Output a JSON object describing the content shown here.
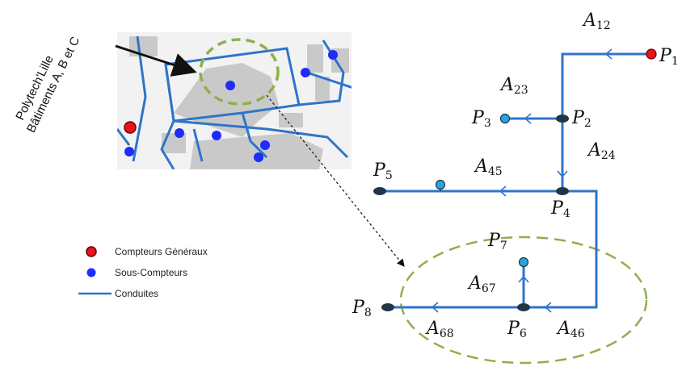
{
  "callout": {
    "line1": "Polytech'Lille",
    "line2": "Bâtiments A, B et C"
  },
  "legend": {
    "items": [
      {
        "label": "Compteurs Généraux",
        "color": "#e8141c"
      },
      {
        "label": "Sous-Compteurs",
        "color": "#1f2bff"
      },
      {
        "label": "Conduites",
        "color": "#2e6fd6"
      }
    ]
  },
  "colors": {
    "pipe": "#2e75c8",
    "general_meter": "#e8141c",
    "sub_meter_map": "#1f2bff",
    "terminal_node": "#29a4dc",
    "junction_node": "#243447",
    "zoom_circle": "#8db04a",
    "building": "#c9c9c9"
  },
  "network": {
    "nodes": [
      {
        "id": "P1",
        "base": "P",
        "sub": "1",
        "kind": "general"
      },
      {
        "id": "P2",
        "base": "P",
        "sub": "2",
        "kind": "junction"
      },
      {
        "id": "P3",
        "base": "P",
        "sub": "3",
        "kind": "terminal"
      },
      {
        "id": "P4",
        "base": "P",
        "sub": "4",
        "kind": "junction"
      },
      {
        "id": "P5",
        "base": "P",
        "sub": "5",
        "kind": "junction"
      },
      {
        "id": "P6",
        "base": "P",
        "sub": "6",
        "kind": "junction"
      },
      {
        "id": "P7",
        "base": "P",
        "sub": "7",
        "kind": "terminal"
      },
      {
        "id": "P8",
        "base": "P",
        "sub": "8",
        "kind": "junction"
      }
    ],
    "edges": [
      {
        "id": "A12",
        "base": "A",
        "sub": "12"
      },
      {
        "id": "A23",
        "base": "A",
        "sub": "23"
      },
      {
        "id": "A24",
        "base": "A",
        "sub": "24"
      },
      {
        "id": "A45",
        "base": "A",
        "sub": "45"
      },
      {
        "id": "A46",
        "base": "A",
        "sub": "46"
      },
      {
        "id": "A67",
        "base": "A",
        "sub": "67"
      },
      {
        "id": "A68",
        "base": "A",
        "sub": "68"
      }
    ]
  }
}
